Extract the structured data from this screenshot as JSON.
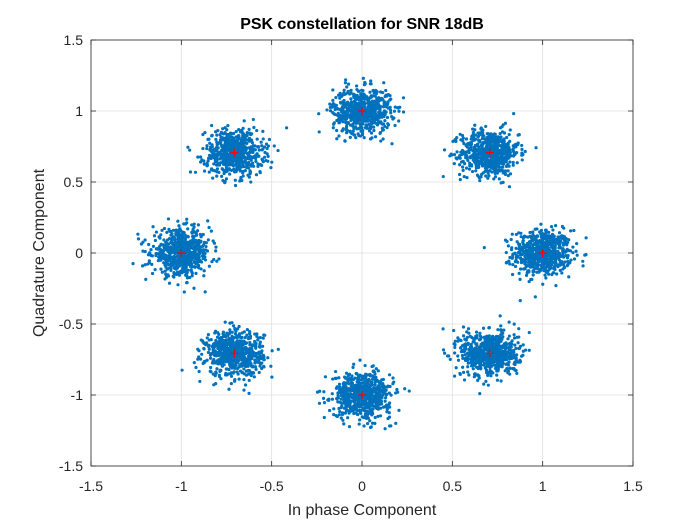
{
  "chart_data": {
    "type": "scatter",
    "title": "PSK constellation for SNR 18dB",
    "xlabel": "In phase Component",
    "ylabel": "Quadrature Component",
    "xlim": [
      -1.5,
      1.5
    ],
    "ylim": [
      -1.5,
      1.5
    ],
    "xticks": [
      -1.5,
      -1,
      -0.5,
      0,
      0.5,
      1,
      1.5
    ],
    "yticks": [
      -1.5,
      -1,
      -0.5,
      0,
      0.5,
      1,
      1.5
    ],
    "xtick_labels": [
      "-1.5",
      "-1",
      "-0.5",
      "0",
      "0.5",
      "1",
      "1.5"
    ],
    "ytick_labels": [
      "-1.5",
      "-1",
      "-0.5",
      "0",
      "0.5",
      "1",
      "1.5"
    ],
    "grid": true,
    "series": [
      {
        "name": "Received symbols",
        "marker": "dot",
        "color": "#0072BD",
        "cluster_spread_std": 0.08,
        "samples_per_cluster": 650,
        "cluster_centers": [
          {
            "x": 1,
            "y": 0
          },
          {
            "x": 0.7071,
            "y": 0.7071
          },
          {
            "x": 0,
            "y": 1
          },
          {
            "x": -0.7071,
            "y": 0.7071
          },
          {
            "x": -1,
            "y": 0
          },
          {
            "x": -0.7071,
            "y": -0.7071
          },
          {
            "x": 0,
            "y": -1
          },
          {
            "x": 0.7071,
            "y": -0.7071
          }
        ]
      },
      {
        "name": "Ideal constellation points",
        "marker": "+",
        "color": "#FF0000",
        "points": [
          {
            "x": 1,
            "y": 0
          },
          {
            "x": 0.7071,
            "y": 0.7071
          },
          {
            "x": 0,
            "y": 1
          },
          {
            "x": -0.7071,
            "y": 0.7071
          },
          {
            "x": -1,
            "y": 0
          },
          {
            "x": -0.7071,
            "y": -0.7071
          },
          {
            "x": 0,
            "y": -1
          },
          {
            "x": 0.7071,
            "y": -0.7071
          }
        ]
      }
    ]
  }
}
